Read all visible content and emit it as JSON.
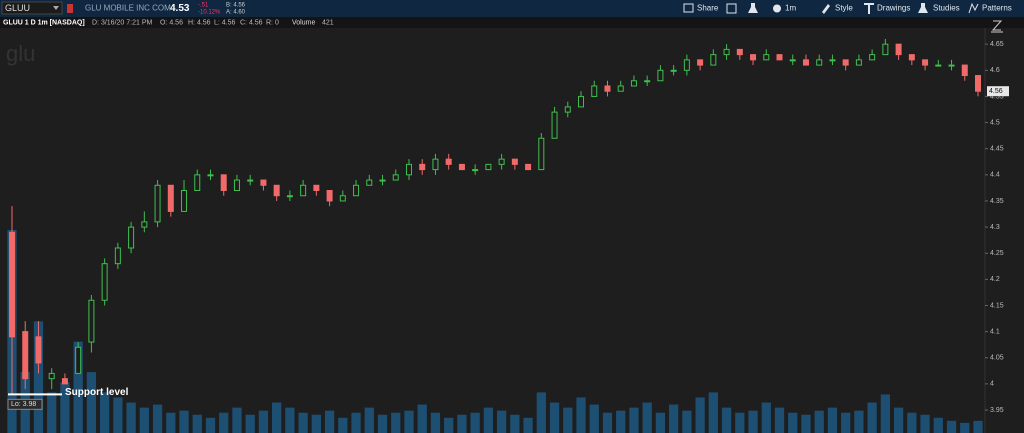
{
  "header": {
    "symbol": "GLUU",
    "company": "GLU MOBILE INC COM",
    "last": "4.53",
    "change": "-.51",
    "change_pct": "-10.12%",
    "bid": "B: 4.56",
    "ask": "A: 4.60",
    "buttons": [
      "Share",
      "1m",
      "Style",
      "Drawings",
      "Studies",
      "Patterns"
    ],
    "info": [
      "GLUU 1 D 1m [NASDAQ]",
      "D: 3/16/20 7:21 PM",
      "O: 4.56",
      "H: 4.56",
      "L: 4.56",
      "C: 4.56",
      "R: 0"
    ],
    "volume_label": "Volume",
    "volume_value": "421"
  },
  "chart_data": {
    "type": "candlestick",
    "watermark": "glu",
    "annotations": {
      "support": "Support level",
      "low": "Lo: 3.98",
      "last_price": "4.56"
    },
    "up_color": "#3fbf4f",
    "down_color": "#f06a6a",
    "volume_color": "#1d4f73",
    "ylim": [
      3.906,
      4.702
    ],
    "yticks": [
      3.95,
      4,
      4.05,
      4.1,
      4.15,
      4.2,
      4.25,
      4.3,
      4.35,
      4.4,
      4.45,
      4.5,
      4.55,
      4.6,
      4.65
    ],
    "open": [
      4.29,
      4.1,
      4.09,
      4.01,
      4.01,
      4.02,
      4.08,
      4.16,
      4.23,
      4.26,
      4.3,
      4.31,
      4.38,
      4.33,
      4.37,
      4.4,
      4.4,
      4.37,
      4.39,
      4.39,
      4.38,
      4.36,
      4.36,
      4.38,
      4.37,
      4.35,
      4.36,
      4.38,
      4.39,
      4.39,
      4.4,
      4.42,
      4.41,
      4.43,
      4.42,
      4.41,
      4.41,
      4.42,
      4.43,
      4.42,
      4.41,
      4.47,
      4.52,
      4.53,
      4.55,
      4.57,
      4.56,
      4.57,
      4.58,
      4.58,
      4.6,
      4.6,
      4.62,
      4.61,
      4.63,
      4.64,
      4.63,
      4.62,
      4.63,
      4.62,
      4.62,
      4.61,
      4.62,
      4.62,
      4.61,
      4.62,
      4.63,
      4.65,
      4.63,
      4.62,
      4.61,
      4.61,
      4.61,
      4.59
    ],
    "high": [
      4.34,
      4.12,
      4.12,
      4.03,
      4.02,
      4.08,
      4.17,
      4.24,
      4.27,
      4.31,
      4.33,
      4.39,
      4.38,
      4.39,
      4.41,
      4.41,
      4.4,
      4.4,
      4.4,
      4.39,
      4.38,
      4.37,
      4.39,
      4.38,
      4.37,
      4.37,
      4.39,
      4.4,
      4.4,
      4.41,
      4.43,
      4.43,
      4.44,
      4.44,
      4.42,
      4.42,
      4.42,
      4.44,
      4.43,
      4.42,
      4.48,
      4.53,
      4.54,
      4.56,
      4.58,
      4.58,
      4.58,
      4.59,
      4.59,
      4.61,
      4.61,
      4.63,
      4.62,
      4.64,
      4.65,
      4.64,
      4.63,
      4.64,
      4.63,
      4.63,
      4.63,
      4.63,
      4.63,
      4.62,
      4.63,
      4.64,
      4.66,
      4.65,
      4.63,
      4.62,
      4.62,
      4.62,
      4.61,
      4.59
    ],
    "low": [
      3.98,
      3.99,
      4.02,
      3.99,
      4.0,
      4.02,
      4.06,
      4.15,
      4.22,
      4.25,
      4.29,
      4.3,
      4.32,
      4.33,
      4.37,
      4.39,
      4.36,
      4.37,
      4.38,
      4.37,
      4.35,
      4.35,
      4.36,
      4.36,
      4.34,
      4.35,
      4.36,
      4.38,
      4.38,
      4.39,
      4.39,
      4.4,
      4.4,
      4.41,
      4.41,
      4.4,
      4.41,
      4.41,
      4.41,
      4.41,
      4.41,
      4.47,
      4.51,
      4.53,
      4.55,
      4.55,
      4.56,
      4.57,
      4.57,
      4.58,
      4.59,
      4.59,
      4.6,
      4.61,
      4.62,
      4.62,
      4.61,
      4.62,
      4.62,
      4.61,
      4.61,
      4.61,
      4.61,
      4.6,
      4.61,
      4.62,
      4.63,
      4.62,
      4.61,
      4.6,
      4.61,
      4.6,
      4.58,
      4.55
    ],
    "close": [
      4.09,
      4.01,
      4.04,
      4.02,
      4.0,
      4.07,
      4.16,
      4.23,
      4.26,
      4.3,
      4.31,
      4.38,
      4.33,
      4.37,
      4.4,
      4.4,
      4.37,
      4.39,
      4.39,
      4.38,
      4.36,
      4.36,
      4.38,
      4.37,
      4.35,
      4.36,
      4.38,
      4.39,
      4.39,
      4.4,
      4.42,
      4.41,
      4.43,
      4.42,
      4.41,
      4.41,
      4.42,
      4.43,
      4.42,
      4.41,
      4.47,
      4.52,
      4.53,
      4.55,
      4.57,
      4.56,
      4.57,
      4.58,
      4.58,
      4.6,
      4.6,
      4.62,
      4.61,
      4.63,
      4.64,
      4.63,
      4.62,
      4.63,
      4.62,
      4.62,
      4.61,
      4.62,
      4.62,
      4.61,
      4.62,
      4.63,
      4.65,
      4.63,
      4.62,
      4.61,
      4.61,
      4.61,
      4.59,
      4.56
    ],
    "volume": [
      200,
      60,
      110,
      40,
      50,
      90,
      60,
      40,
      35,
      30,
      25,
      28,
      20,
      22,
      18,
      15,
      20,
      25,
      18,
      22,
      30,
      25,
      20,
      18,
      22,
      15,
      20,
      25,
      18,
      20,
      22,
      28,
      20,
      15,
      18,
      20,
      25,
      22,
      18,
      15,
      40,
      30,
      25,
      35,
      28,
      20,
      22,
      25,
      30,
      20,
      28,
      22,
      35,
      40,
      25,
      20,
      22,
      30,
      25,
      20,
      18,
      22,
      25,
      20,
      22,
      30,
      38,
      25,
      20,
      18,
      15,
      12,
      10,
      12
    ]
  }
}
